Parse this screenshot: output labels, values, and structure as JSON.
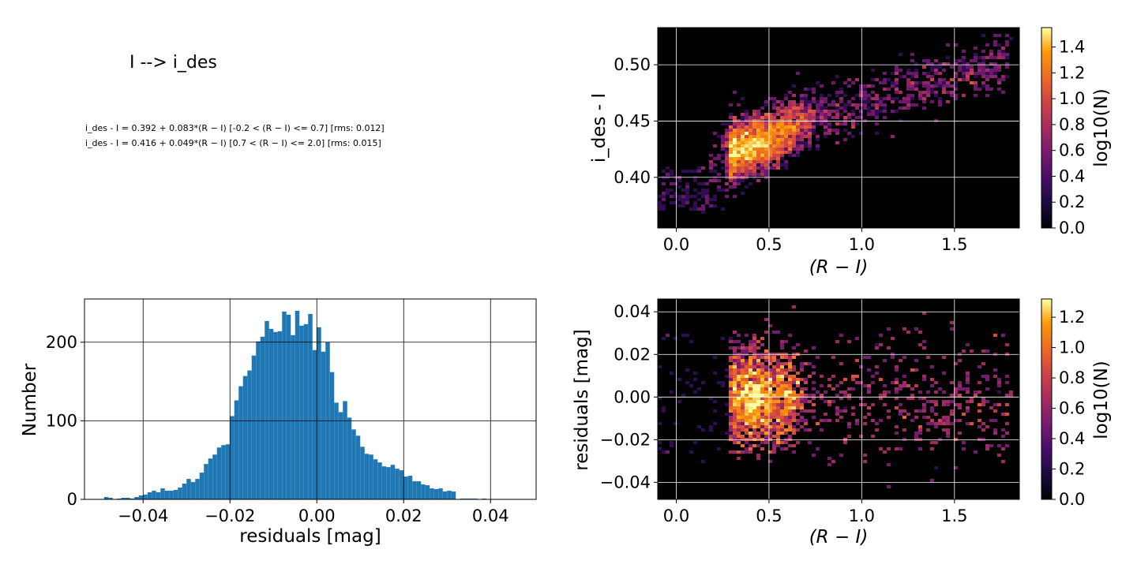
{
  "title": "I --> i_des",
  "equations": [
    "i_des - I = 0.392 + 0.083*(R − I) [-0.2 < (R − I) <= 0.7] [rms: 0.012]",
    "i_des - I = 0.416 + 0.049*(R − I) [0.7 < (R − I) <= 2.0] [rms: 0.015]"
  ],
  "colors": {
    "histogram": "#1f77b4",
    "background": "#000000",
    "grid": "#ffffff"
  },
  "chart_data": [
    {
      "id": "color-term",
      "type": "heatmap",
      "xlabel": "(R − I)",
      "ylabel": "i_des - I",
      "xlim": [
        -0.1,
        1.85
      ],
      "ylim": [
        0.355,
        0.533
      ],
      "xticks": [
        0.0,
        0.5,
        1.0,
        1.5
      ],
      "xtick_labels": [
        "0.0",
        "0.5",
        "1.0",
        "1.5"
      ],
      "yticks": [
        0.4,
        0.45,
        0.5
      ],
      "ytick_labels": [
        "0.40",
        "0.45",
        "0.50"
      ],
      "grid": true,
      "colorbar": {
        "label": "log10(N)",
        "range": [
          0,
          1.55
        ],
        "ticks": [
          0,
          0.2,
          0.4,
          0.6,
          0.8,
          1.0,
          1.2,
          1.4
        ],
        "tick_labels": [
          "0.0",
          "0.2",
          "0.4",
          "0.6",
          "0.8",
          "1.0",
          "1.2",
          "1.4"
        ],
        "colormap": "inferno"
      },
      "density_clusters": [
        {
          "x": 0.36,
          "y": 0.418,
          "peak": 1.55
        },
        {
          "x": 0.55,
          "y": 0.438,
          "peak": 1.25
        },
        {
          "x": 0.9,
          "y": 0.458,
          "peak": 0.6
        },
        {
          "x": 1.35,
          "y": 0.48,
          "peak": 0.45
        }
      ]
    },
    {
      "id": "residual-histogram",
      "type": "bar",
      "xlabel": "residuals [mag]",
      "ylabel": "Number",
      "xlim": [
        -0.0535,
        0.0505
      ],
      "ylim": [
        0,
        255
      ],
      "xticks": [
        -0.04,
        -0.02,
        0.0,
        0.02,
        0.04
      ],
      "xtick_labels": [
        "−0.04",
        "−0.02",
        "0.00",
        "0.02",
        "0.04"
      ],
      "yticks": [
        0,
        100,
        200
      ],
      "ytick_labels": [
        "0",
        "100",
        "200"
      ],
      "grid": true,
      "bin_start": -0.049,
      "bin_width": 0.001,
      "counts": [
        3,
        2,
        0,
        1,
        2,
        2,
        1,
        3,
        5,
        6,
        9,
        11,
        9,
        14,
        11,
        11,
        12,
        15,
        20,
        26,
        22,
        26,
        34,
        45,
        52,
        57,
        66,
        69,
        70,
        106,
        126,
        144,
        157,
        164,
        183,
        201,
        207,
        227,
        217,
        213,
        214,
        239,
        235,
        209,
        240,
        221,
        223,
        236,
        190,
        219,
        188,
        200,
        162,
        123,
        111,
        125,
        104,
        89,
        81,
        67,
        58,
        57,
        51,
        47,
        42,
        41,
        44,
        39,
        37,
        29,
        30,
        23,
        23,
        19,
        18,
        14,
        13,
        14,
        10,
        11,
        10,
        0,
        1,
        1,
        1,
        1,
        0,
        1
      ]
    },
    {
      "id": "residual-scatter",
      "type": "heatmap",
      "xlabel": "(R − I)",
      "ylabel": "residuals [mag]",
      "xlim": [
        -0.1,
        1.85
      ],
      "ylim": [
        -0.048,
        0.046
      ],
      "xticks": [
        0.0,
        0.5,
        1.0,
        1.5
      ],
      "xtick_labels": [
        "0.0",
        "0.5",
        "1.0",
        "1.5"
      ],
      "yticks": [
        -0.04,
        -0.02,
        0.0,
        0.02,
        0.04
      ],
      "ytick_labels": [
        "−0.04",
        "−0.02",
        "0.00",
        "0.02",
        "0.04"
      ],
      "grid": true,
      "colorbar": {
        "label": "log10(N)",
        "range": [
          0,
          1.32
        ],
        "ticks": [
          0,
          0.2,
          0.4,
          0.6,
          0.8,
          1.0,
          1.2
        ],
        "tick_labels": [
          "0.0",
          "0.2",
          "0.4",
          "0.6",
          "0.8",
          "1.0",
          "1.2"
        ],
        "colormap": "inferno"
      },
      "density_clusters": [
        {
          "x": 0.38,
          "y": 0.0,
          "peak": 1.3
        },
        {
          "x": 0.58,
          "y": -0.004,
          "peak": 1.0
        },
        {
          "x": 1.0,
          "y": 0.0,
          "peak": 0.45
        }
      ]
    }
  ]
}
